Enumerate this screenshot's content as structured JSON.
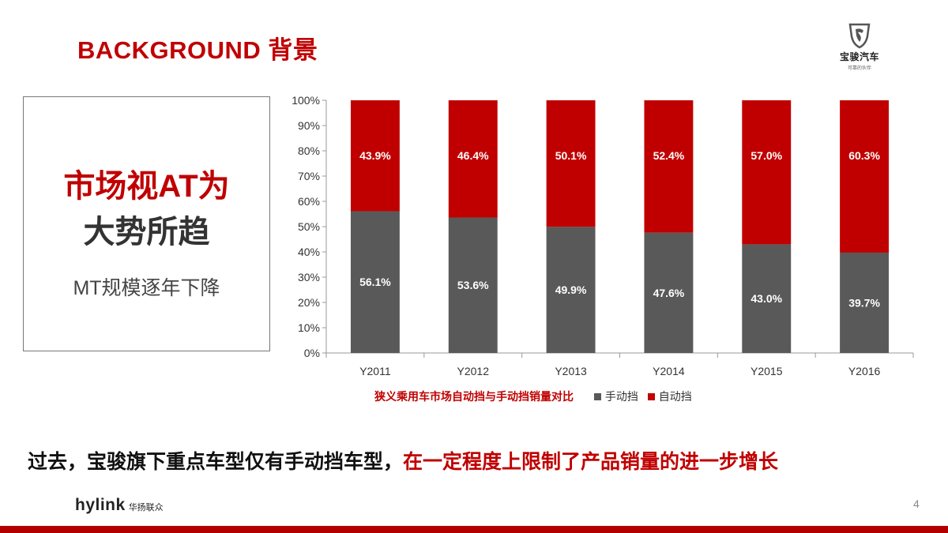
{
  "header": {
    "title": "BACKGROUND 背景"
  },
  "brand": {
    "name": "宝骏汽车",
    "tagline": "可靠的伙伴"
  },
  "callout": {
    "line1": "市场视AT为",
    "line2": "大势所趋",
    "sub": "MT规模逐年下降"
  },
  "chart_data": {
    "type": "bar",
    "stacked": true,
    "title": "狭义乘用车市场自动挡与手动挡销量对比",
    "categories": [
      "Y2011",
      "Y2012",
      "Y2013",
      "Y2014",
      "Y2015",
      "Y2016"
    ],
    "series": [
      {
        "name": "手动挡",
        "color": "#595959",
        "values": [
          56.1,
          53.6,
          49.9,
          47.6,
          43.0,
          39.7
        ],
        "labels": [
          "56.1%",
          "53.6%",
          "49.9%",
          "47.6%",
          "43.0%",
          "39.7%"
        ]
      },
      {
        "name": "自动挡",
        "color": "#c00000",
        "values": [
          43.9,
          46.4,
          50.1,
          52.4,
          57.0,
          60.3
        ],
        "labels": [
          "43.9%",
          "46.4%",
          "50.1%",
          "52.4%",
          "57.0%",
          "60.3%"
        ]
      }
    ],
    "yticks": [
      "0%",
      "10%",
      "20%",
      "30%",
      "40%",
      "50%",
      "60%",
      "70%",
      "80%",
      "90%",
      "100%"
    ],
    "ylim": [
      0,
      100
    ],
    "legend_position": "bottom"
  },
  "bottom": {
    "text_black": "过去，宝骏旗下重点车型仅有手动挡车型，",
    "text_red": "在一定程度上限制了产品销量的进一步增长"
  },
  "footer": {
    "logo_word": "hylink",
    "logo_cn": "华扬联众",
    "page": "4"
  }
}
